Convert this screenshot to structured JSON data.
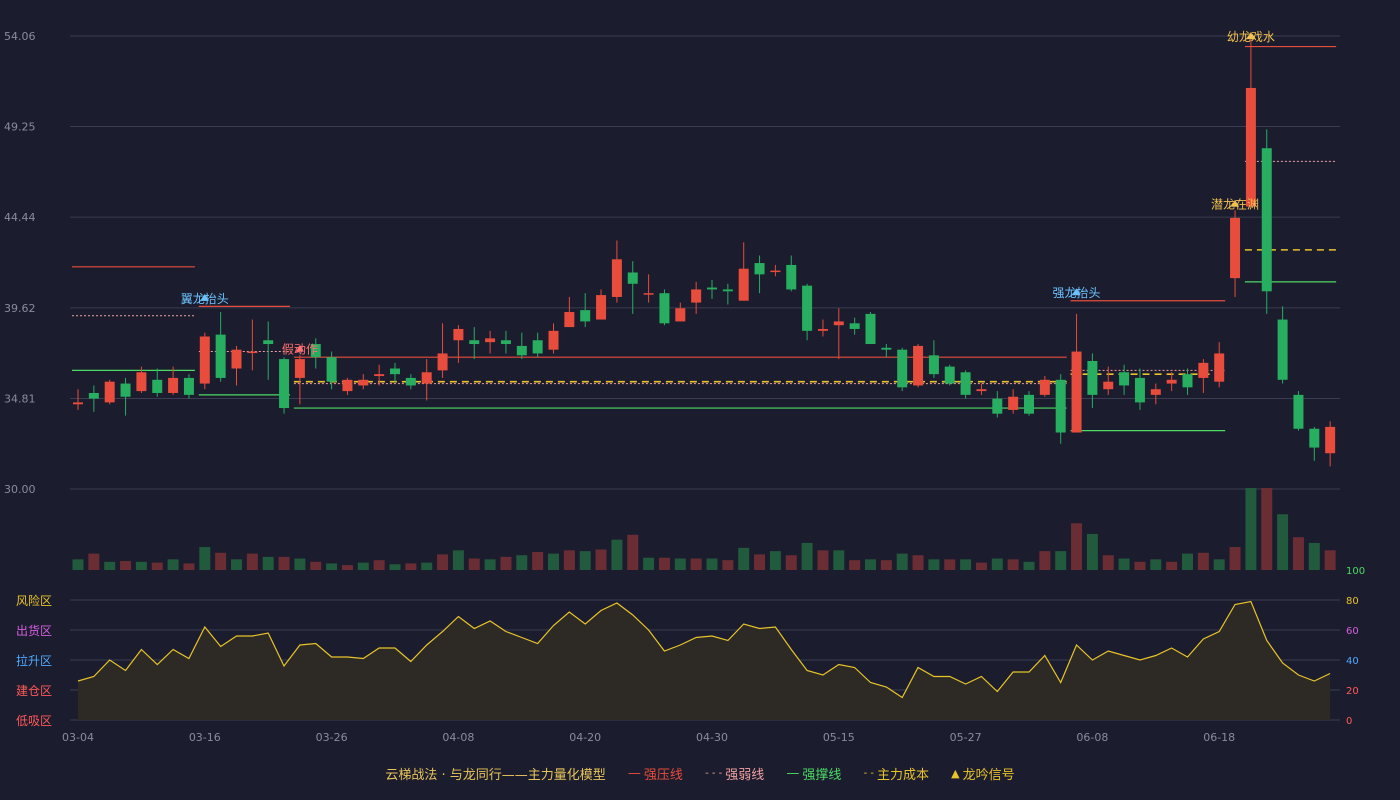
{
  "colors": {
    "background": "#1b1c2d",
    "up": "#e74c3c",
    "down": "#27ae60",
    "resistance": "#e74c3c",
    "weak": "#f0a0a0",
    "support": "#4cd964",
    "cost": "#e8c32a",
    "line": "#e8c32a",
    "label_text": "#e8c45a",
    "signal_blue": "#6cc4ff",
    "signal_red": "#ff7070",
    "signal_yellow": "#f2c14e"
  },
  "chart_data": {
    "type": "candlestick",
    "title": "",
    "price_axis": {
      "ticks": [
        "54.06",
        "49.25",
        "44.44",
        "39.62",
        "34.81",
        "30.00"
      ],
      "range": [
        30.0,
        54.06
      ]
    },
    "x_ticks": [
      {
        "index": 0,
        "label": "03-04"
      },
      {
        "index": 8,
        "label": "03-16"
      },
      {
        "index": 16,
        "label": "03-26"
      },
      {
        "index": 24,
        "label": "04-08"
      },
      {
        "index": 32,
        "label": "04-20"
      },
      {
        "index": 40,
        "label": "04-30"
      },
      {
        "index": 48,
        "label": "05-15"
      },
      {
        "index": 56,
        "label": "05-27"
      },
      {
        "index": 64,
        "label": "06-08"
      },
      {
        "index": 72,
        "label": "06-18"
      }
    ],
    "candles": [
      [
        34.5,
        34.6,
        35.3,
        34.2
      ],
      [
        35.1,
        34.8,
        35.5,
        34.1
      ],
      [
        34.6,
        35.7,
        35.8,
        34.5
      ],
      [
        35.6,
        34.9,
        35.9,
        33.9
      ],
      [
        35.2,
        36.2,
        36.5,
        35.1
      ],
      [
        35.8,
        35.1,
        36.4,
        34.9
      ],
      [
        35.1,
        35.9,
        36.5,
        35.0
      ],
      [
        35.9,
        35.0,
        36.1,
        34.8
      ],
      [
        35.6,
        38.1,
        38.3,
        35.3
      ],
      [
        38.2,
        35.9,
        39.4,
        35.7
      ],
      [
        36.4,
        37.4,
        37.6,
        35.5
      ],
      [
        37.3,
        37.3,
        39.0,
        36.3
      ],
      [
        37.9,
        37.7,
        38.9,
        35.8
      ],
      [
        36.9,
        34.3,
        37.0,
        34.0
      ],
      [
        35.9,
        36.9,
        37.1,
        34.5
      ],
      [
        37.7,
        37.0,
        38.0,
        36.4
      ],
      [
        37.0,
        35.7,
        37.3,
        35.3
      ],
      [
        35.2,
        35.8,
        35.9,
        35.0
      ],
      [
        35.5,
        35.8,
        36.1,
        35.3
      ],
      [
        36.0,
        36.1,
        36.6,
        35.5
      ],
      [
        36.4,
        36.1,
        36.7,
        35.7
      ],
      [
        35.9,
        35.5,
        36.1,
        35.3
      ],
      [
        35.6,
        36.2,
        36.9,
        34.7
      ],
      [
        36.3,
        37.2,
        38.8,
        35.9
      ],
      [
        37.9,
        38.5,
        38.7,
        36.7
      ],
      [
        37.9,
        37.7,
        38.6,
        36.9
      ],
      [
        37.8,
        38.0,
        38.4,
        37.2
      ],
      [
        37.9,
        37.7,
        38.4,
        37.2
      ],
      [
        37.6,
        37.1,
        38.3,
        36.9
      ],
      [
        37.9,
        37.2,
        38.3,
        37.0
      ],
      [
        37.4,
        38.4,
        38.8,
        37.2
      ],
      [
        38.6,
        39.4,
        40.2,
        38.6
      ],
      [
        39.5,
        38.9,
        40.4,
        38.6
      ],
      [
        39.0,
        40.3,
        40.6,
        39.0
      ],
      [
        40.2,
        42.2,
        43.2,
        39.9
      ],
      [
        41.5,
        40.9,
        42.1,
        39.3
      ],
      [
        40.4,
        40.4,
        41.4,
        39.9
      ],
      [
        40.4,
        38.8,
        40.6,
        38.7
      ],
      [
        38.9,
        39.6,
        39.9,
        38.9
      ],
      [
        39.9,
        40.6,
        41.0,
        39.3
      ],
      [
        40.7,
        40.6,
        41.1,
        40.1
      ],
      [
        40.6,
        40.5,
        40.9,
        39.8
      ],
      [
        40.0,
        41.7,
        43.1,
        40.0
      ],
      [
        42.0,
        41.4,
        42.4,
        40.4
      ],
      [
        41.6,
        41.6,
        41.9,
        41.3
      ],
      [
        41.9,
        40.6,
        42.4,
        40.5
      ],
      [
        40.8,
        38.4,
        40.9,
        37.9
      ],
      [
        38.4,
        38.5,
        39.0,
        38.1
      ],
      [
        38.7,
        38.9,
        39.6,
        36.9
      ],
      [
        38.8,
        38.5,
        39.1,
        38.2
      ],
      [
        39.3,
        37.7,
        39.4,
        37.7
      ],
      [
        37.5,
        37.4,
        37.7,
        37.0
      ],
      [
        37.4,
        35.4,
        37.5,
        35.2
      ],
      [
        35.5,
        37.6,
        37.7,
        35.4
      ],
      [
        37.1,
        36.1,
        37.9,
        35.9
      ],
      [
        36.5,
        35.6,
        36.6,
        35.5
      ],
      [
        36.2,
        35.0,
        36.3,
        34.8
      ],
      [
        35.2,
        35.3,
        35.6,
        35.0
      ],
      [
        34.8,
        34.0,
        35.2,
        33.8
      ],
      [
        34.2,
        34.9,
        35.3,
        34.0
      ],
      [
        35.0,
        34.0,
        35.2,
        33.9
      ],
      [
        35.0,
        35.8,
        36.0,
        34.9
      ],
      [
        35.8,
        33.0,
        36.1,
        32.4
      ],
      [
        33.0,
        37.3,
        39.3,
        33.0
      ],
      [
        36.8,
        35.0,
        37.2,
        34.3
      ],
      [
        35.3,
        35.7,
        36.5,
        35.0
      ],
      [
        36.2,
        35.5,
        36.6,
        35.0
      ],
      [
        35.9,
        34.6,
        36.4,
        34.2
      ],
      [
        35.0,
        35.3,
        35.6,
        34.5
      ],
      [
        35.6,
        35.8,
        36.2,
        35.2
      ],
      [
        36.1,
        35.4,
        36.4,
        35.0
      ],
      [
        35.9,
        36.7,
        36.9,
        35.1
      ],
      [
        35.7,
        37.2,
        37.8,
        35.4
      ],
      [
        41.2,
        44.4,
        44.8,
        40.2
      ],
      [
        45.0,
        51.3,
        54.0,
        46.0
      ],
      [
        48.1,
        40.5,
        49.1,
        39.3
      ],
      [
        39.0,
        35.8,
        39.7,
        35.6
      ],
      [
        35.0,
        33.2,
        35.2,
        33.1
      ],
      [
        33.2,
        32.2,
        33.3,
        31.5
      ],
      [
        31.9,
        33.3,
        33.6,
        31.2
      ]
    ],
    "volume": [
      [
        1,
        0.13
      ],
      [
        0,
        0.2
      ],
      [
        1,
        0.1
      ],
      [
        0,
        0.11
      ],
      [
        1,
        0.1
      ],
      [
        0,
        0.09
      ],
      [
        1,
        0.13
      ],
      [
        0,
        0.08
      ],
      [
        1,
        0.28
      ],
      [
        0,
        0.21
      ],
      [
        1,
        0.13
      ],
      [
        0,
        0.2
      ],
      [
        1,
        0.16
      ],
      [
        0,
        0.16
      ],
      [
        1,
        0.14
      ],
      [
        0,
        0.1
      ],
      [
        1,
        0.08
      ],
      [
        0,
        0.06
      ],
      [
        1,
        0.09
      ],
      [
        0,
        0.12
      ],
      [
        1,
        0.07
      ],
      [
        0,
        0.08
      ],
      [
        1,
        0.09
      ],
      [
        0,
        0.19
      ],
      [
        1,
        0.24
      ],
      [
        0,
        0.14
      ],
      [
        1,
        0.13
      ],
      [
        0,
        0.16
      ],
      [
        1,
        0.18
      ],
      [
        0,
        0.22
      ],
      [
        1,
        0.2
      ],
      [
        0,
        0.24
      ],
      [
        1,
        0.23
      ],
      [
        0,
        0.25
      ],
      [
        1,
        0.37
      ],
      [
        0,
        0.43
      ],
      [
        1,
        0.15
      ],
      [
        0,
        0.15
      ],
      [
        1,
        0.14
      ],
      [
        0,
        0.14
      ],
      [
        1,
        0.14
      ],
      [
        0,
        0.12
      ],
      [
        1,
        0.27
      ],
      [
        0,
        0.19
      ],
      [
        1,
        0.23
      ],
      [
        0,
        0.18
      ],
      [
        1,
        0.33
      ],
      [
        0,
        0.24
      ],
      [
        1,
        0.24
      ],
      [
        0,
        0.12
      ],
      [
        1,
        0.13
      ],
      [
        0,
        0.12
      ],
      [
        1,
        0.2
      ],
      [
        0,
        0.18
      ],
      [
        1,
        0.13
      ],
      [
        0,
        0.13
      ],
      [
        1,
        0.13
      ],
      [
        0,
        0.09
      ],
      [
        1,
        0.14
      ],
      [
        0,
        0.13
      ],
      [
        1,
        0.1
      ],
      [
        0,
        0.23
      ],
      [
        1,
        0.23
      ],
      [
        0,
        0.57
      ],
      [
        1,
        0.44
      ],
      [
        0,
        0.18
      ],
      [
        1,
        0.14
      ],
      [
        0,
        0.1
      ],
      [
        1,
        0.13
      ],
      [
        0,
        0.1
      ],
      [
        1,
        0.2
      ],
      [
        0,
        0.21
      ],
      [
        1,
        0.13
      ],
      [
        0,
        0.28
      ],
      [
        1,
        1.0
      ],
      [
        0,
        1.0
      ],
      [
        1,
        0.68
      ],
      [
        0,
        0.4
      ],
      [
        1,
        0.33
      ],
      [
        0,
        0.24
      ]
    ],
    "volume_max_label": "100",
    "oscillator": {
      "ticks": [
        "80",
        "60",
        "40",
        "20",
        "0"
      ],
      "range": [
        0,
        100
      ],
      "zones": [
        "风险区",
        "出货区",
        "拉升区",
        "建仓区",
        "低吸区"
      ],
      "zone_colors": [
        "#e8c32a",
        "#d45fe0",
        "#4da8ff",
        "#ff5a5a",
        "#ff5a5a"
      ],
      "values": [
        26,
        29,
        40,
        33,
        47,
        37,
        47,
        41,
        62,
        49,
        56,
        56,
        58,
        36,
        50,
        51,
        42,
        42,
        41,
        48,
        48,
        39,
        50,
        59,
        69,
        61,
        66,
        59,
        55,
        51,
        63,
        72,
        64,
        73,
        78,
        70,
        60,
        46,
        50,
        55,
        56,
        53,
        64,
        61,
        62,
        47,
        33,
        30,
        37,
        35,
        25,
        22,
        15,
        35,
        29,
        29,
        24,
        29,
        19,
        32,
        32,
        43,
        25,
        50,
        40,
        46,
        43,
        40,
        43,
        48,
        42,
        54,
        59,
        77,
        79,
        53,
        38,
        30,
        26,
        31
      ]
    },
    "overlays": [
      {
        "type": "resistance",
        "from": 0,
        "to": 7,
        "price": 41.8
      },
      {
        "type": "weak",
        "from": 0,
        "to": 7,
        "price": 39.2
      },
      {
        "type": "support",
        "from": 0,
        "to": 7,
        "price": 36.3
      },
      {
        "type": "resistance",
        "from": 8,
        "to": 13,
        "price": 39.7
      },
      {
        "type": "weak",
        "from": 8,
        "to": 13,
        "price": 37.3
      },
      {
        "type": "support",
        "from": 8,
        "to": 13,
        "price": 35.0
      },
      {
        "type": "resistance",
        "from": 14,
        "to": 62,
        "price": 37.0
      },
      {
        "type": "cost",
        "from": 14,
        "to": 62,
        "price": 35.7
      },
      {
        "type": "weak",
        "from": 14,
        "to": 62,
        "price": 35.6
      },
      {
        "type": "support",
        "from": 14,
        "to": 62,
        "price": 34.3
      },
      {
        "type": "resistance",
        "from": 63,
        "to": 72,
        "price": 40.0
      },
      {
        "type": "weak",
        "from": 63,
        "to": 72,
        "price": 36.3
      },
      {
        "type": "cost",
        "from": 63,
        "to": 72,
        "price": 36.1
      },
      {
        "type": "support",
        "from": 63,
        "to": 72,
        "price": 33.1
      },
      {
        "type": "resistance",
        "from": 74,
        "to": 79,
        "price": 53.5
      },
      {
        "type": "weak",
        "from": 74,
        "to": 79,
        "price": 47.4
      },
      {
        "type": "cost",
        "from": 74,
        "to": 79,
        "price": 42.7
      },
      {
        "type": "support",
        "from": 74,
        "to": 79,
        "price": 41.0
      }
    ],
    "signals": [
      {
        "index": 8,
        "price": 40.1,
        "text": "翼龙抬头",
        "color": "#6cc4ff"
      },
      {
        "index": 14,
        "price": 37.4,
        "text": "假动作",
        "color": "#ff7070"
      },
      {
        "index": 63,
        "price": 40.4,
        "text": "强龙抬头",
        "color": "#6cc4ff"
      },
      {
        "index": 73,
        "price": 45.1,
        "text": "潜龙在渊",
        "color": "#f2c14e"
      },
      {
        "index": 74,
        "price": 54.0,
        "text": "幼龙戏水",
        "color": "#f2c14e"
      }
    ]
  },
  "legend": {
    "title": "云梯战法 · 与龙同行——主力量化模型",
    "items": [
      {
        "label": "强压线",
        "mark": "—",
        "color": "#e74c3c"
      },
      {
        "label": "强弱线",
        "mark": "- - -",
        "color": "#f0a0a0"
      },
      {
        "label": "强撑线",
        "mark": "—",
        "color": "#4cd964"
      },
      {
        "label": "主力成本",
        "mark": "- -",
        "color": "#e8c32a"
      },
      {
        "label": "龙吟信号",
        "mark": "▲",
        "color": "#e8c32a"
      }
    ]
  }
}
